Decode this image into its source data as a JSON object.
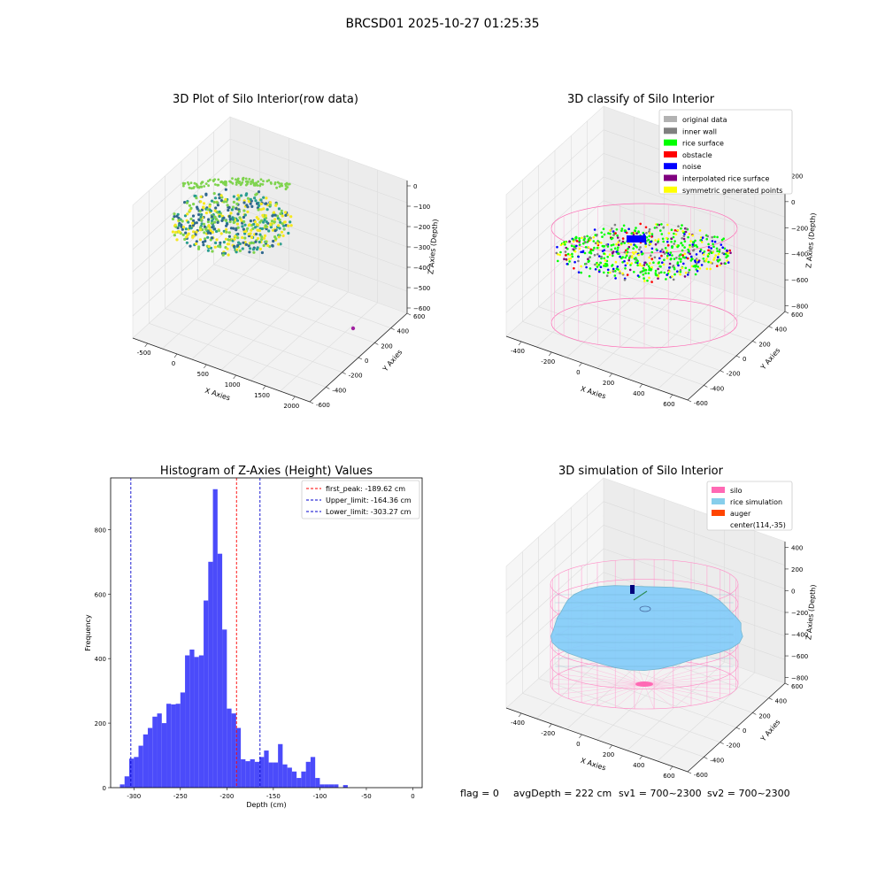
{
  "figure": {
    "suptitle": "BRCSD01 2025-10-27 01:25:35",
    "footer": {
      "flag": "flag = 0",
      "avg": "avgDepth = 222 cm",
      "sv1": "sv1 = 700~2300",
      "sv2": "sv2 = 700~2300"
    }
  },
  "colors": {
    "pane": "#f2f2f2",
    "grid": "#dcdcdc",
    "hist_bar": "#4b4bfa",
    "peak_line": "#ff0000",
    "limit_line": "#0000cc",
    "silo": "#ff69b4",
    "rice_sim": "#87cefa",
    "auger": "#ff4500"
  },
  "chart_data": [
    {
      "type": "scatter",
      "panel": "raw",
      "title": "3D Plot of Silo Interior(row data)",
      "xlabel": "X Axies",
      "ylabel": "Y Axies",
      "zlabel": "Z Axies (Depth)",
      "x_ticks": [
        "-500",
        "0",
        "500",
        "1000",
        "1500",
        "2000"
      ],
      "y_ticks": [
        "-600",
        "-400",
        "-200",
        "0",
        "200",
        "400",
        "600"
      ],
      "z_ticks": [
        "0",
        "−100",
        "−200",
        "−300",
        "−400",
        "−500",
        "−600"
      ],
      "xlim": [
        -600,
        2000
      ],
      "ylim": [
        -650,
        650
      ],
      "zlim": [
        -620,
        20
      ],
      "colormap": [
        "#f5e81f",
        "#7fd34e",
        "#2a9d8f",
        "#31688e"
      ],
      "series": [
        {
          "points": "dense scan of rice surface, z approx -100 to -400, x approx -550 to 600"
        },
        {
          "outlier": {
            "x": 1900,
            "y": 0,
            "z": -600
          }
        }
      ]
    },
    {
      "type": "scatter",
      "panel": "classify",
      "title": "3D classify of Silo Interior",
      "xlabel": "X Axies",
      "ylabel": "Y Axies",
      "zlabel": "Z Axies (Depth)",
      "x_ticks": [
        "-400",
        "-200",
        "0",
        "200",
        "400",
        "600"
      ],
      "y_ticks": [
        "-600",
        "-400",
        "-200",
        "0",
        "200",
        "400",
        "600"
      ],
      "z_ticks": [
        "200",
        "0",
        "−200",
        "−400",
        "−600",
        "−800"
      ],
      "legend": [
        {
          "label": "original data",
          "color": "#b2b2b2"
        },
        {
          "label": "inner wall",
          "color": "#808080"
        },
        {
          "label": "rice surface",
          "color": "#00ff00"
        },
        {
          "label": "obstacle",
          "color": "#ff0000"
        },
        {
          "label": "noise",
          "color": "#0000ff"
        },
        {
          "label": "interpolated rice surface",
          "color": "#800080"
        },
        {
          "label": "symmetric generated points",
          "color": "#ffff00"
        }
      ]
    },
    {
      "type": "bar",
      "panel": "histogram",
      "title": "Histogram of Z-Axies (Height) Values",
      "xlabel": "Depth (cm)",
      "ylabel": "Frequency",
      "xlim": [
        -325,
        10
      ],
      "ylim": [
        0,
        960
      ],
      "x_ticks": [
        -300,
        -250,
        -200,
        -150,
        -100,
        -50,
        0
      ],
      "y_ticks": [
        0,
        200,
        400,
        600,
        800
      ],
      "bin_start": -315,
      "bin_width": 5,
      "values": [
        10,
        35,
        90,
        95,
        130,
        165,
        185,
        220,
        230,
        200,
        260,
        258,
        260,
        295,
        410,
        428,
        405,
        410,
        580,
        700,
        925,
        725,
        490,
        245,
        230,
        185,
        88,
        82,
        88,
        80,
        95,
        115,
        78,
        78,
        135,
        72,
        62,
        50,
        30,
        50,
        80,
        95,
        30,
        10,
        10,
        10,
        10,
        0,
        8,
        0
      ],
      "vlines": [
        {
          "label": "first_peak: -189.62 cm",
          "x": -189.62,
          "color": "#ff0000"
        },
        {
          "label": "Upper_limit: -164.36 cm",
          "x": -164.36,
          "color": "#0000cc"
        },
        {
          "label": "Lower_limit: -303.27 cm",
          "x": -303.27,
          "color": "#0000cc"
        }
      ]
    },
    {
      "type": "scatter",
      "panel": "simulation",
      "title": "3D simulation of Silo Interior",
      "xlabel": "X Axies",
      "ylabel": "Y Axies",
      "zlabel": "Z Axies (Depth)",
      "x_ticks": [
        "-400",
        "-200",
        "0",
        "200",
        "400",
        "600"
      ],
      "y_ticks": [
        "-600",
        "-400",
        "-200",
        "0",
        "200",
        "400",
        "600"
      ],
      "z_ticks": [
        "400",
        "200",
        "0",
        "−200",
        "−400",
        "−600",
        "−800"
      ],
      "legend": [
        {
          "label": "silo",
          "color": "#ff69b4"
        },
        {
          "label": "rice simulation",
          "color": "#87ceeb"
        },
        {
          "label": "auger",
          "color": "#ff4500"
        },
        {
          "label": "center(114,-35)",
          "color": ""
        }
      ]
    }
  ]
}
